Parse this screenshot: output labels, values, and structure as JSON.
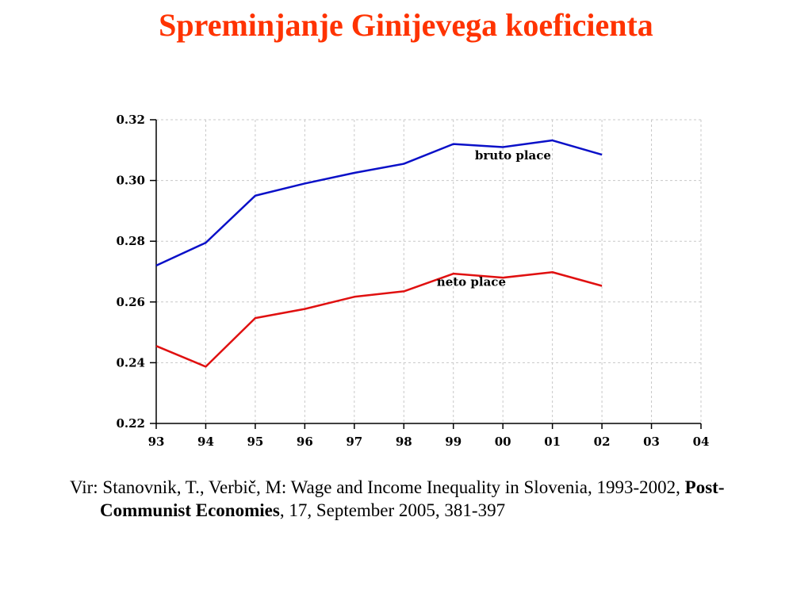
{
  "title": "Spreminjanje Ginijevega koeficienta",
  "colors": {
    "title": "#ff3300",
    "bruto": "#0a10c8",
    "neto": "#e01010"
  },
  "chart_data": {
    "type": "line",
    "x": [
      "93",
      "94",
      "95",
      "96",
      "97",
      "98",
      "99",
      "00",
      "01",
      "02",
      "03",
      "04"
    ],
    "y_ticks": [
      "0.32",
      "0.30",
      "0.28",
      "0.26",
      "0.24",
      "0.22"
    ],
    "ylim": [
      0.22,
      0.32
    ],
    "grid": true,
    "series": [
      {
        "name": "bruto place",
        "values": [
          0.272,
          0.2795,
          0.295,
          0.299,
          0.3025,
          0.3055,
          0.312,
          0.311,
          0.3132,
          0.3085,
          null,
          null
        ]
      },
      {
        "name": "neto place",
        "values": [
          0.2455,
          0.2387,
          0.2547,
          0.2577,
          0.2617,
          0.2635,
          0.2693,
          0.268,
          0.2698,
          0.2653,
          null,
          null
        ]
      }
    ]
  },
  "source": {
    "prefix": "Vir: Stanovnik, T., Verbič, M: Wage and Income Inequality in Slovenia, 1993-2002, ",
    "journal": "Post-Communist Economies",
    "suffix": ", 17, September 2005, 381-397"
  }
}
